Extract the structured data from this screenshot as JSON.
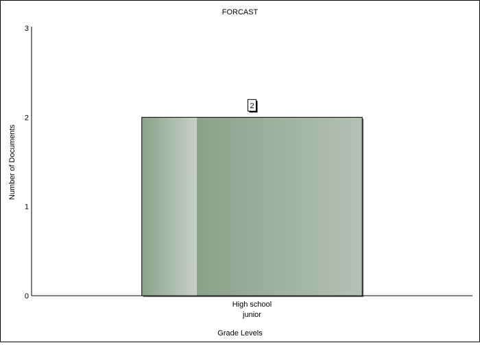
{
  "chart_data": {
    "type": "bar",
    "title": "FORCAST",
    "xlabel": "Grade Levels",
    "ylabel": "Number of Documents",
    "categories": [
      [
        "High school",
        "junior"
      ]
    ],
    "values": [
      2
    ],
    "data_labels": [
      "2"
    ],
    "ylim": [
      0,
      3
    ],
    "yticks": [
      0,
      1,
      2,
      3
    ],
    "grid": false,
    "legend": "none",
    "colors": {
      "bar_dark": "#8aa28a",
      "bar_light": "#c6d2c6",
      "bar_end": "#b3c2b3",
      "border": "#000000"
    }
  }
}
